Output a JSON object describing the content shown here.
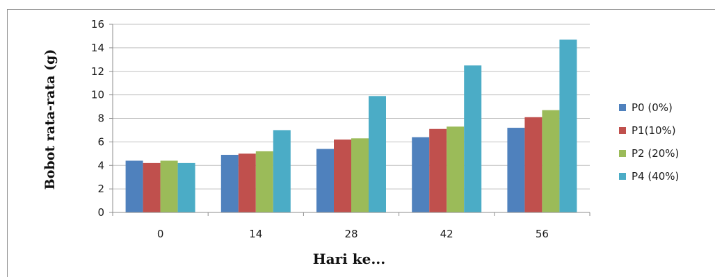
{
  "chart_data": {
    "type": "bar",
    "title": "",
    "xlabel": "Hari ke...",
    "ylabel": "Bobot rata-rata (g)",
    "ylim": [
      0,
      16
    ],
    "yticks": [
      0,
      2,
      4,
      6,
      8,
      10,
      12,
      14,
      16
    ],
    "categories": [
      "0",
      "14",
      "28",
      "42",
      "56"
    ],
    "grid": true,
    "legend_position": "right",
    "series": [
      {
        "name": "P0 (0%)",
        "color": "#4f81bd",
        "values": [
          4.4,
          4.9,
          5.4,
          6.4,
          7.2
        ]
      },
      {
        "name": "P1(10%)",
        "color": "#c0504d",
        "values": [
          4.2,
          5.0,
          6.2,
          7.1,
          8.1
        ]
      },
      {
        "name": "P2 (20%)",
        "color": "#9bbb59",
        "values": [
          4.4,
          5.2,
          6.3,
          7.3,
          8.7
        ]
      },
      {
        "name": "P4 (40%)",
        "color": "#4bacc6",
        "values": [
          4.2,
          7.0,
          9.9,
          12.5,
          14.7
        ]
      }
    ]
  }
}
